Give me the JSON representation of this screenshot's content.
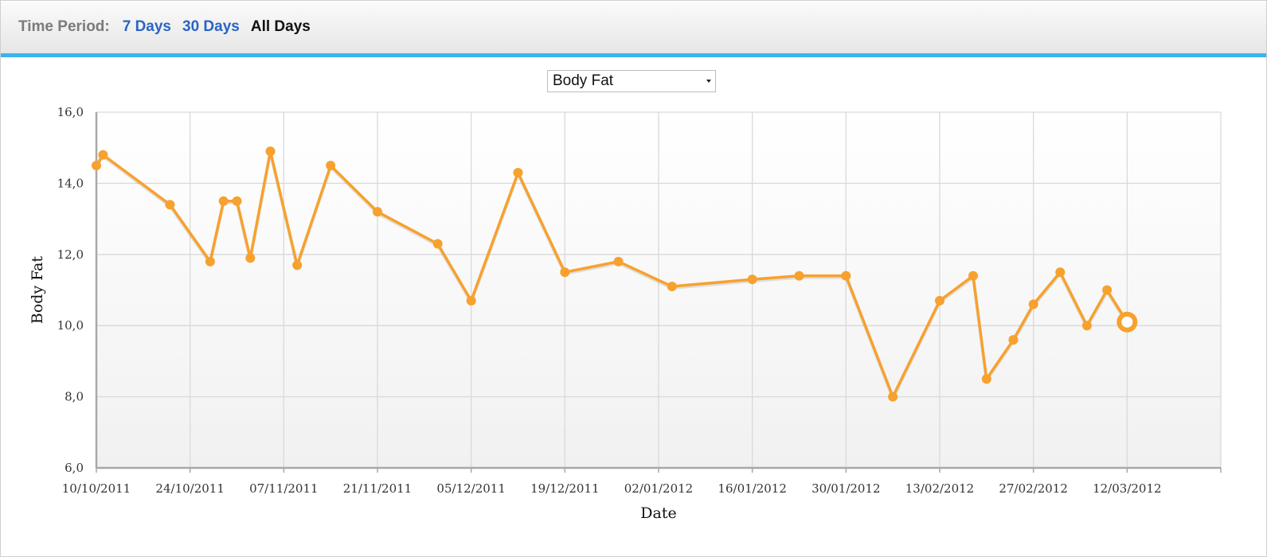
{
  "toolbar": {
    "label": "Time Period:",
    "options": [
      "7 Days",
      "30 Days",
      "All Days"
    ],
    "selected": "All Days"
  },
  "metric_select": {
    "value": "Body Fat"
  },
  "colors": {
    "series": "#f7a12e",
    "link": "#2a64c4",
    "accent_bar": "#3cb4ee",
    "grid": "#d9d9d9"
  },
  "chart_data": {
    "type": "line",
    "title": "",
    "xlabel": "Date",
    "ylabel": "Body Fat",
    "ylim": [
      6,
      16
    ],
    "yticks": [
      "6,0",
      "8,0",
      "10,0",
      "12,0",
      "14,0",
      "16,0"
    ],
    "xlim": [
      "2011-10-10",
      "2012-03-26"
    ],
    "xticks": [
      "10/10/2011",
      "24/10/2011",
      "07/11/2011",
      "21/11/2011",
      "05/12/2011",
      "19/12/2011",
      "02/01/2012",
      "16/01/2012",
      "30/01/2012",
      "13/02/2012",
      "27/02/2012",
      "12/03/2012"
    ],
    "grid": true,
    "series": [
      {
        "x": [
          "2011-10-10",
          "2011-10-11",
          "2011-10-21",
          "2011-10-27",
          "2011-10-29",
          "2011-10-31",
          "2011-11-02",
          "2011-11-05",
          "2011-11-09",
          "2011-11-14",
          "2011-11-21",
          "2011-11-30",
          "2011-12-05",
          "2011-12-12",
          "2011-12-19",
          "2011-12-27",
          "2012-01-04",
          "2012-01-16",
          "2012-01-23",
          "2012-01-30",
          "2012-02-06",
          "2012-02-13",
          "2012-02-18",
          "2012-02-20",
          "2012-02-24",
          "2012-02-27",
          "2012-03-02",
          "2012-03-06",
          "2012-03-09",
          "2012-03-12"
        ],
        "y": [
          14.5,
          14.8,
          13.4,
          11.8,
          13.5,
          13.5,
          11.9,
          14.9,
          11.7,
          14.5,
          13.2,
          12.3,
          10.7,
          14.3,
          11.5,
          11.8,
          11.1,
          11.3,
          11.4,
          11.4,
          8.0,
          10.7,
          11.4,
          8.5,
          9.6,
          10.6,
          11.5,
          10.0,
          11.0,
          10.1
        ]
      }
    ]
  }
}
